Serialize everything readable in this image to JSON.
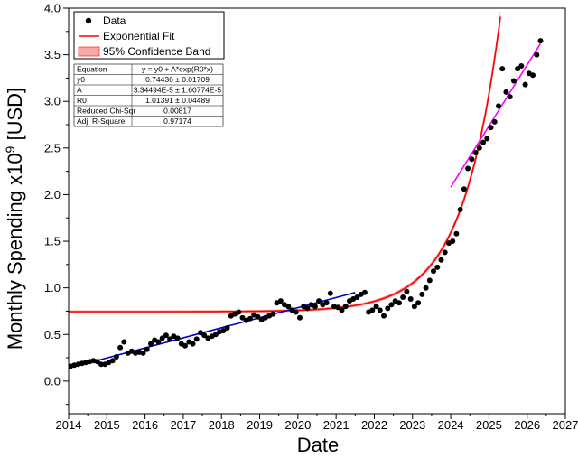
{
  "chart_data": {
    "type": "scatter",
    "xlabel": "Date",
    "ylabel_main": "Monthly Spending x10",
    "ylabel_sup": "9",
    "ylabel_unit": " [USD]",
    "xlim": [
      2014,
      2027
    ],
    "ylim": [
      -0.35,
      4.0
    ],
    "xticks": [
      2014,
      2015,
      2016,
      2017,
      2018,
      2019,
      2020,
      2021,
      2022,
      2023,
      2024,
      2025,
      2026,
      2027
    ],
    "yticks": [
      0.0,
      0.5,
      1.0,
      1.5,
      2.0,
      2.5,
      3.0,
      3.5,
      4.0
    ],
    "ytick_labels": [
      "0.0",
      "0.5",
      "1.0",
      "1.5",
      "2.0",
      "2.5",
      "3.0",
      "3.5",
      "4.0"
    ],
    "grid": false,
    "legend": {
      "placement": "top-left",
      "entries": [
        {
          "label": "Data",
          "kind": "marker",
          "color": "#000000"
        },
        {
          "label": "Exponential Fit",
          "kind": "line",
          "color": "#ff0000"
        },
        {
          "label": "95% Confidence Band",
          "kind": "band",
          "color": "#f7a8a8"
        }
      ]
    },
    "fit_table": {
      "rows": [
        [
          "Equation",
          "y = y0 + A*exp(R0*x)"
        ],
        [
          "y0",
          "0.74436 ± 0.01709"
        ],
        [
          "A",
          "3.34494E-5 ± 1.60774E-5"
        ],
        [
          "R0",
          "1.01391 ± 0.04489"
        ],
        [
          "Reduced Chi-Sqr",
          "0.00817"
        ],
        [
          "Adj. R-Square",
          "0.97174"
        ]
      ]
    },
    "fit": {
      "y0": 0.74436,
      "A": 3.34494e-05,
      "R0": 1.01391,
      "x_origin": 2014,
      "x_range": [
        2014,
        2025.3
      ],
      "color": "#ff0000",
      "band_color": "#f7a8a8"
    },
    "trend_lines": [
      {
        "color": "#0000cc",
        "x": [
          2014.0,
          2021.5
        ],
        "y": [
          0.14,
          0.95
        ]
      },
      {
        "color": "#ff00ff",
        "x": [
          2024.0,
          2026.35
        ],
        "y": [
          2.08,
          3.62
        ]
      }
    ],
    "series": [
      {
        "marker_color": "#000000",
        "x": [
          2014.05,
          2014.15,
          2014.25,
          2014.35,
          2014.45,
          2014.55,
          2014.65,
          2014.75,
          2014.85,
          2014.95,
          2015.05,
          2015.15,
          2015.25,
          2015.35,
          2015.45,
          2015.55,
          2015.65,
          2015.75,
          2015.85,
          2015.95,
          2016.05,
          2016.15,
          2016.25,
          2016.35,
          2016.45,
          2016.55,
          2016.65,
          2016.75,
          2016.85,
          2016.95,
          2017.05,
          2017.15,
          2017.25,
          2017.35,
          2017.45,
          2017.55,
          2017.65,
          2017.75,
          2017.85,
          2017.95,
          2018.05,
          2018.15,
          2018.25,
          2018.35,
          2018.45,
          2018.55,
          2018.65,
          2018.75,
          2018.85,
          2018.95,
          2019.05,
          2019.15,
          2019.25,
          2019.35,
          2019.45,
          2019.55,
          2019.65,
          2019.75,
          2019.85,
          2019.95,
          2020.05,
          2020.15,
          2020.25,
          2020.35,
          2020.45,
          2020.55,
          2020.65,
          2020.75,
          2020.85,
          2020.95,
          2021.05,
          2021.15,
          2021.25,
          2021.35,
          2021.45,
          2021.55,
          2021.65,
          2021.75,
          2021.85,
          2021.95,
          2022.05,
          2022.15,
          2022.25,
          2022.35,
          2022.45,
          2022.55,
          2022.65,
          2022.75,
          2022.85,
          2022.95,
          2023.05,
          2023.15,
          2023.25,
          2023.35,
          2023.45,
          2023.55,
          2023.65,
          2023.75,
          2023.85,
          2023.95,
          2024.05,
          2024.15,
          2024.25,
          2024.35,
          2024.45,
          2024.55,
          2024.65,
          2024.75,
          2024.85,
          2024.95,
          2025.05,
          2025.15,
          2025.25,
          2025.35,
          2025.45,
          2025.55,
          2025.65,
          2025.75,
          2025.85,
          2025.95,
          2026.05,
          2026.15,
          2026.25,
          2026.35
        ],
        "y": [
          0.16,
          0.17,
          0.18,
          0.19,
          0.2,
          0.21,
          0.22,
          0.21,
          0.18,
          0.18,
          0.2,
          0.22,
          0.26,
          0.36,
          0.42,
          0.3,
          0.32,
          0.3,
          0.31,
          0.3,
          0.34,
          0.4,
          0.44,
          0.42,
          0.46,
          0.49,
          0.45,
          0.48,
          0.46,
          0.4,
          0.38,
          0.42,
          0.4,
          0.45,
          0.52,
          0.49,
          0.46,
          0.48,
          0.5,
          0.53,
          0.54,
          0.57,
          0.7,
          0.72,
          0.74,
          0.68,
          0.65,
          0.67,
          0.71,
          0.69,
          0.66,
          0.68,
          0.7,
          0.72,
          0.84,
          0.86,
          0.82,
          0.8,
          0.76,
          0.74,
          0.68,
          0.8,
          0.78,
          0.82,
          0.8,
          0.86,
          0.82,
          0.84,
          0.94,
          0.8,
          0.79,
          0.76,
          0.8,
          0.86,
          0.88,
          0.9,
          0.93,
          0.95,
          0.74,
          0.76,
          0.8,
          0.76,
          0.7,
          0.78,
          0.82,
          0.86,
          0.84,
          0.9,
          0.96,
          0.88,
          0.8,
          0.84,
          0.93,
          1.0,
          1.08,
          1.18,
          1.22,
          1.3,
          1.38,
          1.48,
          1.5,
          1.58,
          1.84,
          2.06,
          2.28,
          2.38,
          2.45,
          2.5,
          2.56,
          2.6,
          2.72,
          2.78,
          2.95,
          3.35,
          3.1,
          3.05,
          3.22,
          3.35,
          3.38,
          3.18,
          3.3,
          3.28,
          3.5,
          3.65
        ]
      }
    ]
  }
}
